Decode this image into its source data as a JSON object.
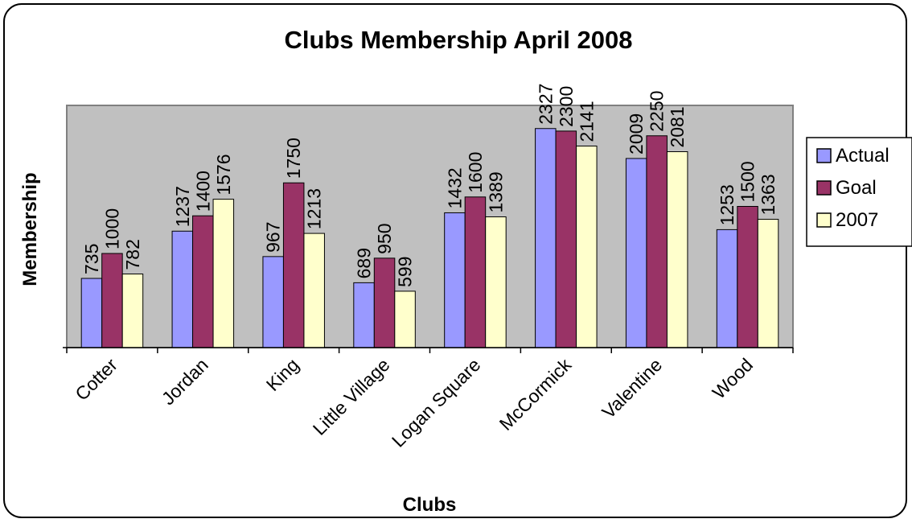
{
  "chart_data": {
    "type": "bar",
    "title": "Clubs Membership April 2008",
    "xlabel": "Clubs",
    "ylabel": "Membership",
    "categories": [
      "Cotter",
      "Jordan",
      "King",
      "Little Village",
      "Logan Square",
      "McCormick",
      "Valentine",
      "Wood"
    ],
    "series": [
      {
        "name": "Actual",
        "color": "#9999ff",
        "values": [
          735,
          1237,
          967,
          689,
          1432,
          2327,
          2009,
          1253
        ]
      },
      {
        "name": "Goal",
        "color": "#993366",
        "values": [
          1000,
          1400,
          1750,
          950,
          1600,
          2300,
          2250,
          1500
        ]
      },
      {
        "name": "2007",
        "color": "#ffffcc",
        "values": [
          782,
          1576,
          1213,
          599,
          1389,
          2141,
          2081,
          1363
        ]
      }
    ],
    "ylim": [
      0,
      2500
    ],
    "plot_background": "#c0c0c0",
    "grid": false,
    "legend_position": "right"
  }
}
